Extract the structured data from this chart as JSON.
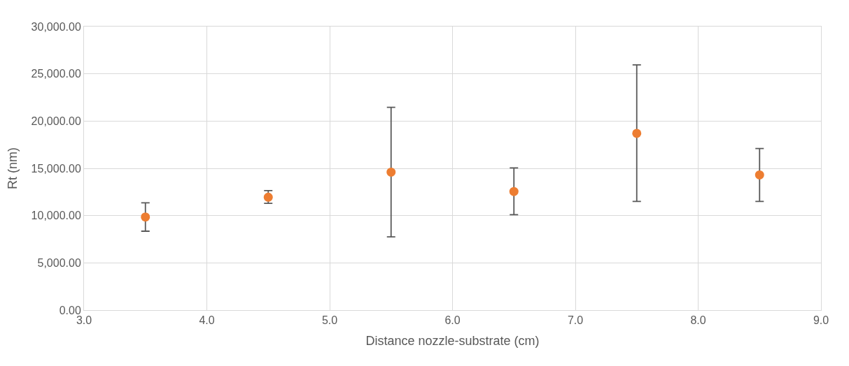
{
  "chart_data": {
    "type": "scatter",
    "xlabel": "Distance nozzle-substrate (cm)",
    "ylabel": "Rt (nm)",
    "x": [
      3.5,
      4.5,
      5.5,
      6.5,
      7.5,
      8.5
    ],
    "values": [
      9850,
      11950,
      14600,
      12550,
      18700,
      14300
    ],
    "errors": [
      [
        8350,
        11350
      ],
      [
        11300,
        12650
      ],
      [
        7750,
        21450
      ],
      [
        10100,
        15050
      ],
      [
        11500,
        25950
      ],
      [
        11500,
        17100
      ]
    ],
    "color": "#ed7d31",
    "marker": "circle",
    "grid": true,
    "xlim": [
      3.0,
      9.0
    ],
    "xticks": [
      {
        "value": 3,
        "label": "3.0"
      },
      {
        "value": 4,
        "label": "4.0"
      },
      {
        "value": 5,
        "label": "5.0"
      },
      {
        "value": 6,
        "label": "6.0"
      },
      {
        "value": 7,
        "label": "7.0"
      },
      {
        "value": 8,
        "label": "8.0"
      },
      {
        "value": 9,
        "label": "9.0"
      }
    ],
    "ylim": [
      0,
      30000
    ],
    "yticks": [
      {
        "value": 0,
        "label": "0.00"
      },
      {
        "value": 5000,
        "label": "5,000.00"
      },
      {
        "value": 10000,
        "label": "10,000.00"
      },
      {
        "value": 15000,
        "label": "15,000.00"
      },
      {
        "value": 20000,
        "label": "20,000.00"
      },
      {
        "value": 25000,
        "label": "25,000.00"
      },
      {
        "value": 30000,
        "label": "30,000.00"
      }
    ]
  }
}
